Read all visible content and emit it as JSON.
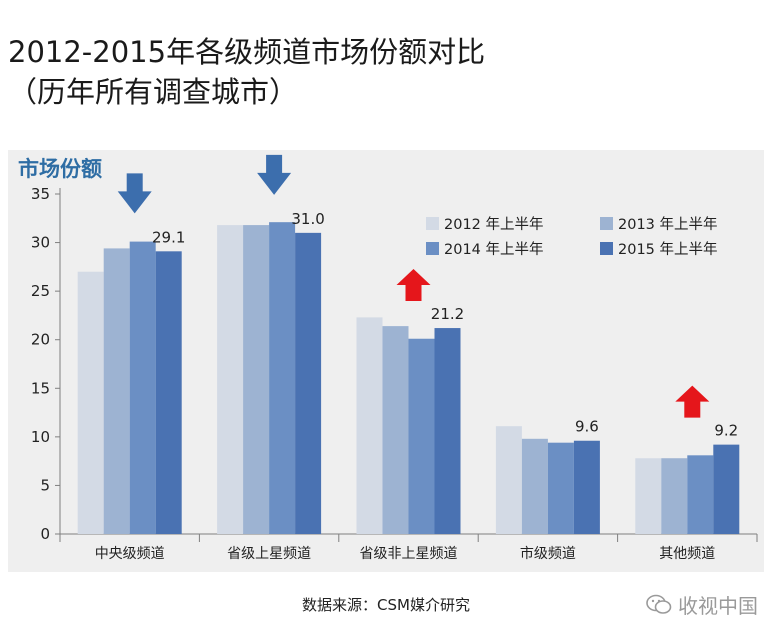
{
  "title_line1": "2012-2015年各级频道市场份额对比",
  "title_line2": "（历年所有调查城市）",
  "source": "数据来源：CSM媒介研究",
  "watermark": "收视中国",
  "colors": {
    "s2012": "#d3dae5",
    "s2013": "#9db3d2",
    "s2014": "#6b8fc4",
    "s2015": "#4a72b2",
    "ylabel": "#2e6da4",
    "arrow_down": "#3c6ead",
    "arrow_up": "#e5161b"
  },
  "chart_data": {
    "type": "bar",
    "ylabel": "市场份额",
    "xlabel": "",
    "ylim": [
      0,
      35
    ],
    "yticks": [
      0,
      5,
      10,
      15,
      20,
      25,
      30,
      35
    ],
    "grid": false,
    "legend_position": "top-right",
    "categories": [
      "中央级频道",
      "省级上星频道",
      "省级非上星频道",
      "市级频道",
      "其他频道"
    ],
    "series": [
      {
        "name": "2012 年上半年",
        "values": [
          27.0,
          31.8,
          22.3,
          11.1,
          7.8
        ]
      },
      {
        "name": "2013 年上半年",
        "values": [
          29.4,
          31.8,
          21.4,
          9.8,
          7.8
        ]
      },
      {
        "name": "2014 年上半年",
        "values": [
          30.1,
          32.1,
          20.1,
          9.4,
          8.1
        ]
      },
      {
        "name": "2015 年上半年",
        "values": [
          29.1,
          31.0,
          21.2,
          9.6,
          9.2
        ]
      }
    ],
    "value_labels": [
      "29.1",
      "31.0",
      "21.2",
      "9.6",
      "9.2"
    ],
    "trend_arrows": [
      "down",
      "down",
      "up",
      "none",
      "up"
    ]
  }
}
